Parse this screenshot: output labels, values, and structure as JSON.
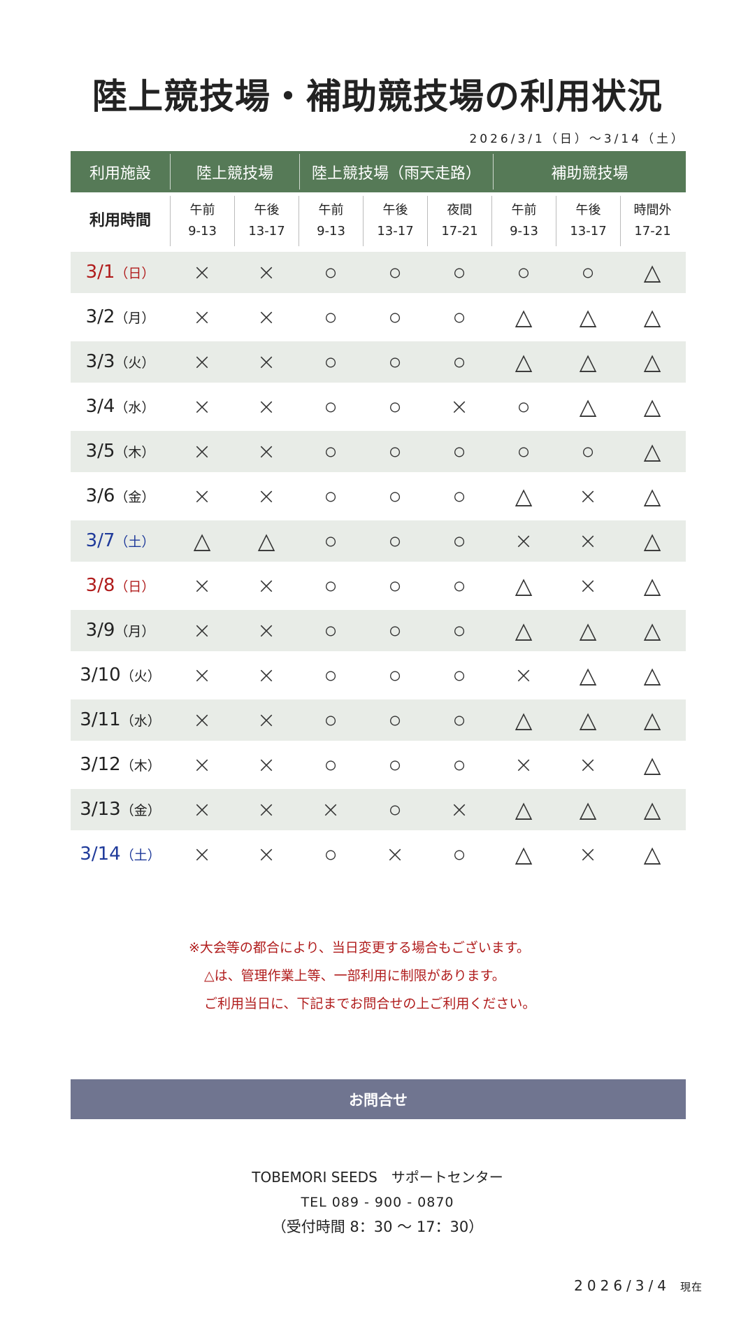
{
  "title": "陸上競技場・補助競技場の利用状況",
  "period": "2026/3/1（日）〜3/14（土）",
  "header": {
    "facility_label": "利用施設",
    "facilities": [
      "陸上競技場",
      "陸上競技場（雨天走路）",
      "補助競技場"
    ],
    "time_label": "利用時間",
    "slots": [
      [
        "午前",
        "9-13"
      ],
      [
        "午後",
        "13-17"
      ],
      [
        "午前",
        "9-13"
      ],
      [
        "午後",
        "13-17"
      ],
      [
        "夜間",
        "17-21"
      ],
      [
        "午前",
        "9-13"
      ],
      [
        "午後",
        "13-17"
      ],
      [
        "時間外",
        "17-21"
      ]
    ]
  },
  "colors": {
    "header_green": "#567a57",
    "stripe": "#e8ece7",
    "sunday": "#b01c1c",
    "saturday": "#1f3a9a",
    "contact_bar": "#707590",
    "note": "#b01c1c"
  },
  "rows": [
    {
      "date": "3/1",
      "dow": "（日）",
      "type": "sun",
      "s": [
        "×",
        "×",
        "○",
        "○",
        "○",
        "○",
        "○",
        "△"
      ]
    },
    {
      "date": "3/2",
      "dow": "（月）",
      "type": "",
      "s": [
        "×",
        "×",
        "○",
        "○",
        "○",
        "△",
        "△",
        "△"
      ]
    },
    {
      "date": "3/3",
      "dow": "（火）",
      "type": "",
      "s": [
        "×",
        "×",
        "○",
        "○",
        "○",
        "△",
        "△",
        "△"
      ]
    },
    {
      "date": "3/4",
      "dow": "（水）",
      "type": "",
      "s": [
        "×",
        "×",
        "○",
        "○",
        "×",
        "○",
        "△",
        "△"
      ]
    },
    {
      "date": "3/5",
      "dow": "（木）",
      "type": "",
      "s": [
        "×",
        "×",
        "○",
        "○",
        "○",
        "○",
        "○",
        "△"
      ]
    },
    {
      "date": "3/6",
      "dow": "（金）",
      "type": "",
      "s": [
        "×",
        "×",
        "○",
        "○",
        "○",
        "△",
        "×",
        "△"
      ]
    },
    {
      "date": "3/7",
      "dow": "（土）",
      "type": "sat",
      "s": [
        "△",
        "△",
        "○",
        "○",
        "○",
        "×",
        "×",
        "△"
      ]
    },
    {
      "date": "3/8",
      "dow": "（日）",
      "type": "sun",
      "s": [
        "×",
        "×",
        "○",
        "○",
        "○",
        "△",
        "×",
        "△"
      ]
    },
    {
      "date": "3/9",
      "dow": "（月）",
      "type": "",
      "s": [
        "×",
        "×",
        "○",
        "○",
        "○",
        "△",
        "△",
        "△"
      ]
    },
    {
      "date": "3/10",
      "dow": "（火）",
      "type": "",
      "s": [
        "×",
        "×",
        "○",
        "○",
        "○",
        "×",
        "△",
        "△"
      ]
    },
    {
      "date": "3/11",
      "dow": "（水）",
      "type": "",
      "s": [
        "×",
        "×",
        "○",
        "○",
        "○",
        "△",
        "△",
        "△"
      ]
    },
    {
      "date": "3/12",
      "dow": "（木）",
      "type": "",
      "s": [
        "×",
        "×",
        "○",
        "○",
        "○",
        "×",
        "×",
        "△"
      ]
    },
    {
      "date": "3/13",
      "dow": "（金）",
      "type": "",
      "s": [
        "×",
        "×",
        "×",
        "○",
        "×",
        "△",
        "△",
        "△"
      ]
    },
    {
      "date": "3/14",
      "dow": "（土）",
      "type": "sat",
      "s": [
        "×",
        "×",
        "○",
        "×",
        "○",
        "△",
        "×",
        "△"
      ]
    }
  ],
  "notes": [
    "※大会等の都合により、当日変更する場合もございます。",
    "△は、管理作業上等、一部利用に制限があります。",
    "ご利用当日に、下記までお問合せの上ご利用ください。"
  ],
  "contact": {
    "button": "お問合せ",
    "org": "TOBEMORI SEEDS　サポートセンター",
    "tel": "TEL 089 - 900 - 0870",
    "hours": "（受付時間 8：30 〜 17：30）"
  },
  "as_of": {
    "date": "2026/3/4",
    "suffix": "現在"
  }
}
